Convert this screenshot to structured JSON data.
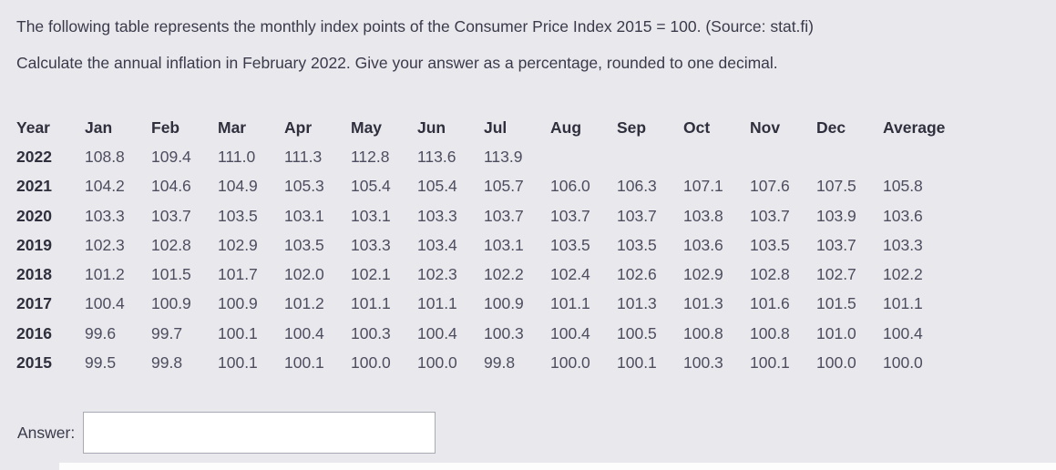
{
  "question": {
    "line1": "The following table represents the monthly index points of the Consumer Price Index 2015 = 100. (Source: stat.fi)",
    "line2": "Calculate the annual inflation in February 2022. Give your answer as a percentage, rounded to one decimal."
  },
  "table": {
    "headers": [
      "Year",
      "Jan",
      "Feb",
      "Mar",
      "Apr",
      "May",
      "Jun",
      "Jul",
      "Aug",
      "Sep",
      "Oct",
      "Nov",
      "Dec",
      "Average"
    ],
    "rows": [
      {
        "year": "2022",
        "values": [
          "108.8",
          "109.4",
          "111.0",
          "111.3",
          "112.8",
          "113.6",
          "113.9",
          "",
          "",
          "",
          "",
          "",
          ""
        ]
      },
      {
        "year": "2021",
        "values": [
          "104.2",
          "104.6",
          "104.9",
          "105.3",
          "105.4",
          "105.4",
          "105.7",
          "106.0",
          "106.3",
          "107.1",
          "107.6",
          "107.5",
          "105.8"
        ]
      },
      {
        "year": "2020",
        "values": [
          "103.3",
          "103.7",
          "103.5",
          "103.1",
          "103.1",
          "103.3",
          "103.7",
          "103.7",
          "103.7",
          "103.8",
          "103.7",
          "103.9",
          "103.6"
        ]
      },
      {
        "year": "2019",
        "values": [
          "102.3",
          "102.8",
          "102.9",
          "103.5",
          "103.3",
          "103.4",
          "103.1",
          "103.5",
          "103.5",
          "103.6",
          "103.5",
          "103.7",
          "103.3"
        ]
      },
      {
        "year": "2018",
        "values": [
          "101.2",
          "101.5",
          "101.7",
          "102.0",
          "102.1",
          "102.3",
          "102.2",
          "102.4",
          "102.6",
          "102.9",
          "102.8",
          "102.7",
          "102.2"
        ]
      },
      {
        "year": "2017",
        "values": [
          "100.4",
          "100.9",
          "100.9",
          "101.2",
          "101.1",
          "101.1",
          "100.9",
          "101.1",
          "101.3",
          "101.3",
          "101.6",
          "101.5",
          "101.1"
        ]
      },
      {
        "year": "2016",
        "values": [
          "99.6",
          "99.7",
          "100.1",
          "100.4",
          "100.3",
          "100.4",
          "100.3",
          "100.4",
          "100.5",
          "100.8",
          "100.8",
          "101.0",
          "100.4"
        ]
      },
      {
        "year": "2015",
        "values": [
          "99.5",
          "99.8",
          "100.1",
          "100.1",
          "100.0",
          "100.0",
          "99.8",
          "100.0",
          "100.1",
          "100.3",
          "100.1",
          "100.0",
          "100.0"
        ]
      }
    ]
  },
  "answer": {
    "label": "Answer:",
    "value": "",
    "placeholder": ""
  },
  "colors": {
    "background": "#e8e8ed",
    "question_text": "#3a3a4b",
    "header_text": "#2f2f3d",
    "cell_text": "#4d4d5f",
    "input_border": "#a7aab3",
    "input_background": "#ffffff"
  }
}
